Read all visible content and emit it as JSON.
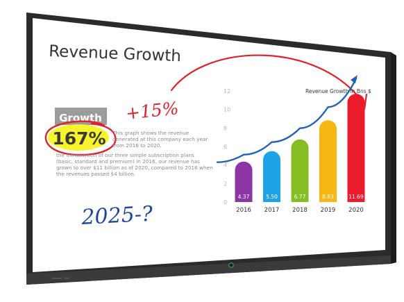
{
  "slide": {
    "title": "Revenue Growth",
    "growth_label": "Growth",
    "growth_value": "167%",
    "desc_lines": [
      "This graph shows the revenue",
      "generated at this company each year",
      "from 2016 to 2020.",
      "the introduction of our three simple subscription plans",
      "(basic, standard and premium) in 2016, our revenue has",
      "grown to over $11 billion as of 2020, compared to 2016 when",
      "the revenues passed $4 billion."
    ]
  },
  "annotations": {
    "plus_note": "+15%",
    "question_note": "2025-?"
  },
  "chart_data": {
    "type": "bar",
    "title": "Revenue Growth in Bns $",
    "categories": [
      "2016",
      "2017",
      "2018",
      "2019",
      "2020"
    ],
    "values": [
      4.37,
      5.5,
      6.77,
      8.83,
      11.69
    ],
    "value_labels": [
      "4.37",
      "5.50",
      "6.77",
      "8.83",
      "11.69"
    ],
    "colors": [
      "#8e35a5",
      "#1ea3e8",
      "#86bd22",
      "#f6b613",
      "#ea1c2c"
    ],
    "yticks": [
      "0",
      "2",
      "4",
      "6",
      "8",
      "10",
      "12"
    ],
    "ylim": [
      0,
      12
    ],
    "grid": false,
    "trend_color": "#1e62b8"
  },
  "colors": {
    "bezel": "#2b2b2d",
    "ink_red": "#e0202a",
    "ink_blue": "#1e46a0",
    "highlight": "#f6f21b",
    "growth_box": "#9b9b9b"
  }
}
